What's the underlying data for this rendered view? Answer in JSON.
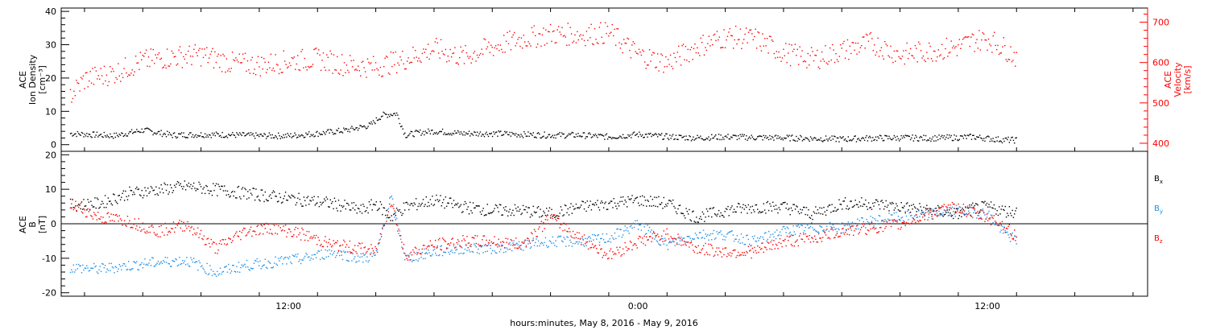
{
  "chart_data": [
    {
      "type": "scatter",
      "panel": "top",
      "xlabel": "hours:minutes, May  8, 2016 - May  9, 2016",
      "x_ticks": [
        "12:00",
        "0:00",
        "12:00"
      ],
      "x_ticks_hours": [
        12,
        24,
        36
      ],
      "xlim_hours": [
        4.2,
        41.5
      ],
      "ylabel_left": [
        "ACE",
        "Ion Density",
        "[cm⁻³]"
      ],
      "ylim_left": [
        -2,
        41
      ],
      "yticks_left": [
        0,
        10,
        20,
        30,
        40
      ],
      "ylabel_right": [
        "ACE",
        "Velocity",
        "[km/s]"
      ],
      "ylim_right": [
        380,
        735
      ],
      "yticks_right": [
        400,
        500,
        600,
        700
      ],
      "series": [
        {
          "axis": "left",
          "color": "#000000",
          "x": [
            4.5,
            6,
            7,
            8,
            9,
            10,
            11,
            12,
            13,
            14,
            14.8,
            15.2,
            15.7,
            16,
            16.5,
            17,
            18,
            19,
            20,
            21,
            22,
            23,
            24,
            25,
            26,
            27,
            28,
            29,
            30,
            31,
            32,
            33,
            34,
            35,
            35.5,
            36,
            36.5,
            37
          ],
          "y": [
            3.5,
            2.8,
            4.5,
            3,
            3.2,
            3.1,
            2.8,
            2.8,
            3.5,
            4.5,
            6,
            9,
            9.5,
            3,
            3.8,
            4.2,
            3.5,
            3.5,
            3.2,
            3,
            3,
            2.5,
            3.2,
            2.5,
            2.2,
            2.5,
            2.3,
            2.2,
            2,
            1.8,
            2.1,
            2.2,
            2.1,
            2.3,
            2.5,
            2,
            1.6,
            1.5
          ]
        },
        {
          "axis": "right",
          "color": "#ff0000",
          "x": [
            4.5,
            5,
            6,
            7,
            8,
            9,
            10,
            11,
            12,
            13,
            14,
            15,
            16,
            17,
            18,
            19,
            20,
            21,
            22,
            23,
            24,
            25,
            26,
            27,
            28,
            29,
            30,
            31,
            32,
            33,
            34,
            35,
            35.5,
            36,
            36.5,
            37
          ],
          "y": [
            520,
            560,
            575,
            605,
            615,
            620,
            600,
            595,
            605,
            610,
            595,
            590,
            610,
            635,
            615,
            640,
            660,
            672,
            670,
            675,
            620,
            600,
            640,
            665,
            660,
            625,
            610,
            630,
            650,
            620,
            630,
            640,
            655,
            660,
            640,
            615
          ]
        }
      ]
    },
    {
      "type": "scatter",
      "panel": "bottom",
      "ylabel": [
        "ACE",
        "B",
        "[nT]"
      ],
      "ylim": [
        -21,
        21
      ],
      "yticks": [
        -20,
        -10,
        0,
        10,
        20
      ],
      "reference_line_y": 0,
      "series": [
        {
          "name": "Bx",
          "label_main": "B",
          "label_sub": "x",
          "color": "#000000",
          "x": [
            4.5,
            5.5,
            6.5,
            7.5,
            8.5,
            9.5,
            10.5,
            11.5,
            12.5,
            13.5,
            14.5,
            15,
            15.5,
            16,
            17,
            18,
            19,
            20,
            21,
            22,
            23,
            24,
            25,
            26,
            27,
            28,
            29,
            30,
            31,
            32,
            33,
            34,
            35,
            35.5,
            36,
            36.5,
            37
          ],
          "y": [
            5.5,
            6,
            9,
            10,
            11,
            10,
            9,
            8,
            7,
            6,
            4,
            6,
            2,
            5,
            7,
            5,
            4,
            4,
            3,
            5,
            6,
            7,
            6,
            2,
            4,
            5,
            5,
            3,
            6,
            6,
            5,
            4,
            3,
            4.5,
            5,
            4,
            3.5
          ]
        },
        {
          "name": "By",
          "label_main": "B",
          "label_sub": "y",
          "color": "#1f8fe6",
          "x": [
            4.5,
            5.5,
            6.5,
            7.5,
            8.5,
            9.5,
            10.5,
            11.5,
            12.5,
            13.5,
            14.5,
            15,
            15.5,
            16,
            17,
            18,
            19,
            20,
            21,
            22,
            23,
            24,
            25,
            26,
            27,
            28,
            29,
            30,
            31,
            32,
            33,
            34,
            35,
            35.5,
            36,
            36.5,
            37
          ],
          "y": [
            -12.5,
            -13,
            -12,
            -11,
            -10.5,
            -14,
            -12,
            -11,
            -10,
            -8,
            -10,
            -9,
            8,
            -10,
            -8,
            -7,
            -7,
            -6,
            -5,
            -5,
            -4,
            0,
            -6,
            -3,
            -3,
            -5,
            -2,
            -1,
            -1,
            1,
            2,
            3,
            4,
            3.5,
            3,
            -2,
            -5
          ]
        },
        {
          "name": "Bz",
          "label_main": "B",
          "label_sub": "z",
          "color": "#ff0000",
          "x": [
            4.5,
            5.5,
            6.5,
            7.5,
            8.5,
            9.5,
            10.5,
            11.5,
            12.5,
            13.5,
            14.5,
            15,
            15.5,
            16,
            17,
            18,
            19,
            20,
            21,
            22,
            23,
            24,
            25,
            26,
            27,
            28,
            29,
            30,
            31,
            32,
            33,
            34,
            35,
            35.5,
            36,
            36.5,
            37
          ],
          "y": [
            6,
            2,
            1,
            -2,
            0,
            -7,
            -2,
            -1,
            -3,
            -6,
            -7,
            -8,
            7,
            -9,
            -6,
            -5,
            -5,
            -6,
            2,
            -4,
            -9,
            -5,
            -3,
            -7,
            -8,
            -8,
            -5,
            -4,
            -2,
            -1,
            0,
            3,
            5,
            3,
            2,
            0,
            -4
          ]
        }
      ]
    }
  ]
}
